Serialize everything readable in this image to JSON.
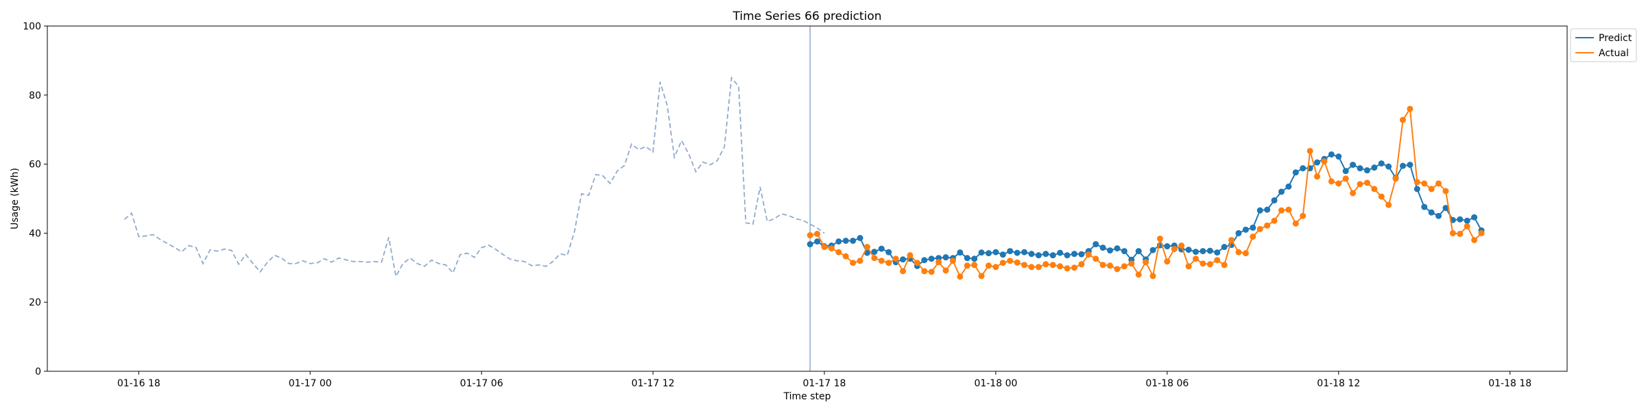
{
  "chart_data": {
    "type": "line",
    "title": "Time Series 66 prediction",
    "xlabel": "Time step",
    "ylabel": "Usage (kWh)",
    "ylim": [
      0,
      100
    ],
    "xlim": [
      "01-16 14:48",
      "01-18 20:00"
    ],
    "x_ticks": [
      "01-16 18",
      "01-17 00",
      "01-17 06",
      "01-17 12",
      "01-17 18",
      "01-18 00",
      "01-18 06",
      "01-18 12",
      "01-18 18"
    ],
    "y_ticks": [
      0,
      20,
      40,
      60,
      80,
      100
    ],
    "grid": false,
    "legend_position": "top-right, outside plot",
    "forecast_start": "01-17 17:30",
    "colors": {
      "predict": "#1f77b4",
      "actual": "#ff7f0e",
      "history": "#8fa9cc",
      "divider": "#8fa9cc"
    },
    "history": {
      "start": "01-16 17:30",
      "step_minutes": 15,
      "values": [
        44.0,
        45.8,
        39.0,
        39.2,
        39.6,
        38.2,
        37.0,
        35.9,
        34.6,
        36.4,
        35.9,
        31.2,
        35.2,
        34.8,
        35.4,
        35.0,
        31.0,
        33.8,
        31.2,
        28.8,
        31.5,
        33.6,
        32.8,
        31.2,
        31.2,
        32.0,
        31.2,
        31.4,
        32.6,
        31.6,
        32.8,
        32.3,
        31.8,
        31.8,
        31.6,
        31.8,
        31.6,
        38.8,
        27.5,
        31.2,
        32.8,
        31.2,
        30.4,
        32.2,
        31.2,
        30.8,
        28.5,
        33.8,
        34.2,
        33.0,
        35.8,
        36.5,
        35.3,
        33.8,
        32.5,
        32.0,
        31.8,
        30.6,
        30.8,
        30.4,
        31.8,
        34.0,
        33.6,
        40.4,
        51.4,
        51.0,
        57.0,
        56.6,
        54.4,
        58.0,
        59.6,
        65.8,
        64.2,
        65.1,
        63.5,
        83.8,
        77.0,
        62.0,
        66.8,
        63.0,
        57.8,
        60.6,
        59.8,
        61.0,
        65.0,
        85.0,
        82.5,
        43.0,
        42.6,
        53.4,
        43.4,
        44.2,
        45.6,
        45.1,
        44.2,
        43.7,
        42.6,
        41.5,
        40.0
      ]
    },
    "series": [
      {
        "name": "Predict",
        "start": "01-17 17:30",
        "step_minutes": 15,
        "values": [
          36.8,
          37.6,
          36.2,
          36.4,
          37.6,
          37.8,
          37.8,
          38.6,
          34.3,
          34.6,
          35.5,
          34.5,
          31.6,
          32.4,
          32.6,
          30.5,
          32.2,
          32.6,
          32.8,
          33.0,
          32.8,
          34.4,
          32.8,
          32.6,
          34.4,
          34.2,
          34.5,
          33.8,
          34.8,
          34.3,
          34.5,
          34.0,
          33.6,
          34.0,
          33.6,
          34.3,
          33.6,
          34.0,
          33.9,
          34.8,
          36.8,
          35.8,
          35.0,
          35.6,
          34.8,
          32.3,
          34.8,
          32.4,
          35.1,
          36.5,
          36.2,
          36.4,
          35.3,
          35.2,
          34.6,
          34.8,
          34.9,
          34.4,
          36.0,
          36.6,
          40.0,
          41.0,
          41.6,
          46.6,
          46.8,
          49.5,
          52.0,
          53.5,
          57.6,
          58.8,
          58.8,
          60.5,
          61.5,
          62.8,
          62.2,
          58.0,
          59.8,
          58.8,
          58.2,
          59.0,
          60.2,
          59.3,
          56.0,
          59.5,
          59.8,
          52.8,
          47.6,
          46.0,
          45.0,
          47.3,
          43.8,
          44.0,
          43.6,
          44.6,
          40.8
        ]
      },
      {
        "name": "Actual",
        "start": "01-17 17:30",
        "step_minutes": 15,
        "values": [
          39.4,
          39.8,
          36.0,
          35.6,
          34.5,
          33.3,
          31.4,
          32.0,
          36.0,
          32.8,
          32.0,
          31.4,
          32.6,
          29.0,
          33.6,
          31.4,
          29.0,
          28.8,
          31.6,
          29.2,
          32.0,
          27.4,
          30.6,
          30.8,
          27.6,
          30.6,
          30.2,
          31.4,
          32.0,
          31.5,
          30.8,
          30.2,
          30.2,
          31.0,
          30.8,
          30.4,
          29.8,
          30.0,
          31.0,
          33.8,
          32.6,
          30.8,
          30.6,
          29.6,
          30.4,
          31.2,
          28.0,
          31.6,
          27.6,
          38.4,
          31.8,
          35.4,
          36.4,
          30.4,
          32.6,
          31.2,
          31.0,
          32.2,
          30.8,
          38.0,
          34.5,
          34.2,
          39.0,
          41.2,
          42.2,
          43.6,
          46.6,
          46.8,
          42.8,
          45.0,
          63.8,
          56.4,
          60.8,
          55.0,
          54.4,
          55.8,
          51.6,
          54.2,
          54.6,
          52.8,
          50.6,
          48.2,
          55.8,
          72.8,
          76.0,
          54.8,
          54.4,
          52.8,
          54.4,
          52.2,
          40.0,
          39.8,
          42.0,
          38.0,
          40.0
        ]
      }
    ]
  }
}
